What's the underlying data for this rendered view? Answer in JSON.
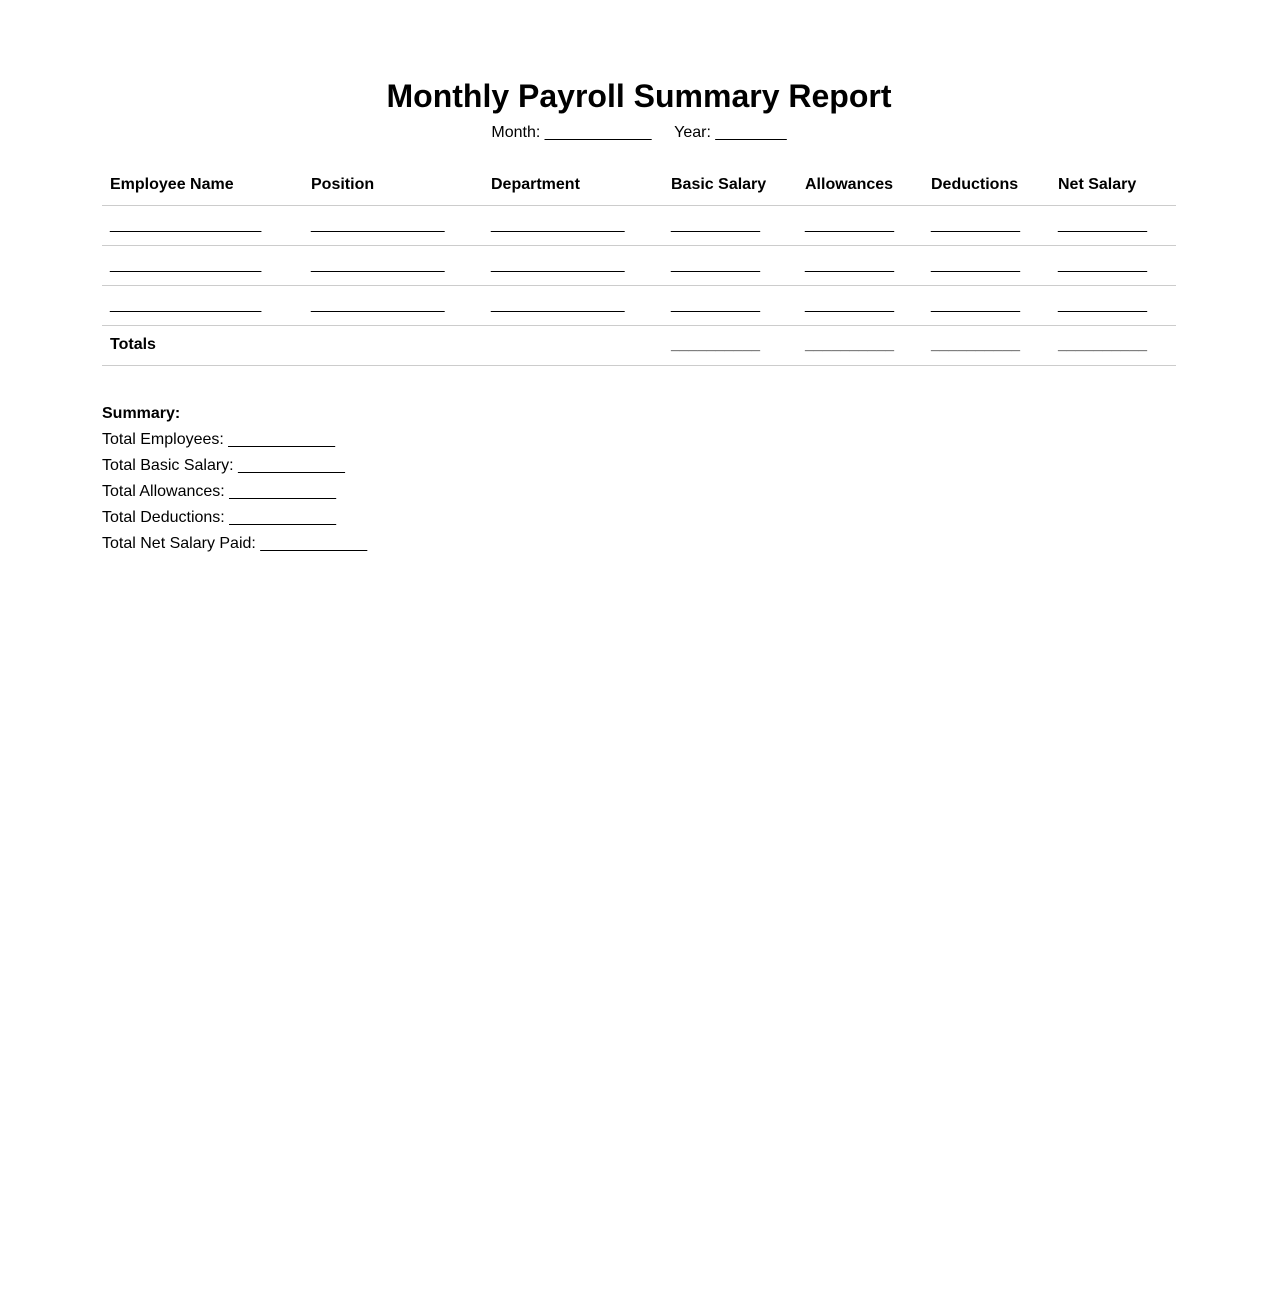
{
  "title": "Monthly Payroll Summary Report",
  "meta": {
    "month_label": "Month:",
    "month_value": "____________",
    "year_label": "Year:",
    "year_value": "________"
  },
  "table": {
    "headers": [
      "Employee Name",
      "Position",
      "Department",
      "Basic Salary",
      "Allowances",
      "Deductions",
      "Net Salary"
    ],
    "rows": [
      [
        "_________________",
        "_______________",
        "_______________",
        "__________",
        "__________",
        "__________",
        "__________"
      ],
      [
        "_________________",
        "_______________",
        "_______________",
        "__________",
        "__________",
        "__________",
        "__________"
      ],
      [
        "_________________",
        "_______________",
        "_______________",
        "__________",
        "__________",
        "__________",
        "__________"
      ]
    ],
    "totals": {
      "label": "Totals",
      "values": [
        "__________",
        "__________",
        "__________",
        "__________"
      ]
    }
  },
  "summary": {
    "heading": "Summary:",
    "items": [
      {
        "label": "Total Employees:",
        "value": "____________"
      },
      {
        "label": "Total Basic Salary:",
        "value": "____________"
      },
      {
        "label": "Total Allowances:",
        "value": "____________"
      },
      {
        "label": "Total Deductions:",
        "value": "____________"
      },
      {
        "label": "Total Net Salary Paid:",
        "value": "____________"
      }
    ]
  }
}
